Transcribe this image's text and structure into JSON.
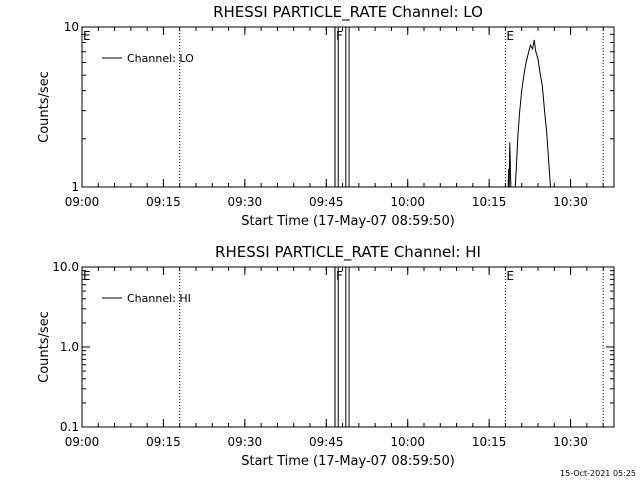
{
  "footer_timestamp": "15-Oct-2021 05:25",
  "chart_data": [
    {
      "type": "line",
      "title": "RHESSI PARTICLE_RATE Channel: LO",
      "xlabel": "Start Time (17-May-07 08:59:50)",
      "ylabel": "Counts/sec",
      "yscale": "log",
      "xlim": [
        "09:00",
        "10:38"
      ],
      "ylim": [
        1,
        10
      ],
      "x_ticks": [
        "09:00",
        "09:15",
        "09:30",
        "09:45",
        "10:00",
        "10:15",
        "10:30"
      ],
      "y_ticks": [
        "1",
        "10"
      ],
      "legend": "top-left",
      "series": [
        {
          "name": "Channel: LO",
          "points": [
            [
              "09:00",
              1
            ],
            [
              "09:46.6",
              1
            ],
            [
              "09:46.6",
              10
            ],
            [
              "09:47.2",
              10
            ],
            [
              "09:47.2",
              1
            ],
            [
              "09:48.6",
              1
            ],
            [
              "09:48.6",
              10
            ],
            [
              "09:49.2",
              10
            ],
            [
              "09:49.2",
              1
            ],
            [
              "10:18.5",
              1
            ],
            [
              "10:18.6",
              1.3
            ],
            [
              "10:18.7",
              1
            ],
            [
              "10:18.8",
              1.9
            ],
            [
              "10:19.0",
              1
            ],
            [
              "10:19.8",
              1
            ],
            [
              "10:20.0",
              1.3
            ],
            [
              "10:20.3",
              2.1
            ],
            [
              "10:20.6",
              2.9
            ],
            [
              "10:21.0",
              4.0
            ],
            [
              "10:21.4",
              5.0
            ],
            [
              "10:21.8",
              6.0
            ],
            [
              "10:22.2",
              6.8
            ],
            [
              "10:22.6",
              7.7
            ],
            [
              "10:23.0",
              7.3
            ],
            [
              "10:23.3",
              8.3
            ],
            [
              "10:23.6",
              7.0
            ],
            [
              "10:24.0",
              6.3
            ],
            [
              "10:24.4",
              5.1
            ],
            [
              "10:24.8",
              4.3
            ],
            [
              "10:25.2",
              3.0
            ],
            [
              "10:25.6",
              2.2
            ],
            [
              "10:26.0",
              1.4
            ],
            [
              "10:26.3",
              1
            ],
            [
              "10:38",
              1
            ]
          ]
        }
      ],
      "vertical_markers": [
        {
          "label": "E",
          "x": "09:00",
          "style": "dotted"
        },
        {
          "label": "",
          "x": "09:18",
          "style": "dotted"
        },
        {
          "label": "F",
          "x": "09:46.6",
          "style": "solid"
        },
        {
          "label": "E",
          "x": "10:18",
          "style": "dotted"
        },
        {
          "label": "",
          "x": "10:36",
          "style": "dotted"
        }
      ]
    },
    {
      "type": "line",
      "title": "RHESSI PARTICLE_RATE Channel: HI",
      "xlabel": "Start Time (17-May-07 08:59:50)",
      "ylabel": "Counts/sec",
      "yscale": "log",
      "xlim": [
        "09:00",
        "10:38"
      ],
      "ylim": [
        0.1,
        10
      ],
      "x_ticks": [
        "09:00",
        "09:15",
        "09:30",
        "09:45",
        "10:00",
        "10:15",
        "10:30"
      ],
      "y_ticks": [
        "0.1",
        "1.0",
        "10.0"
      ],
      "legend": "top-left",
      "series": [
        {
          "name": "Channel: HI",
          "points": [
            [
              "09:00",
              0.1
            ],
            [
              "09:46.6",
              0.1
            ],
            [
              "09:46.6",
              10
            ],
            [
              "09:47.2",
              10
            ],
            [
              "09:47.2",
              0.1
            ],
            [
              "09:48.6",
              0.1
            ],
            [
              "09:48.6",
              10
            ],
            [
              "09:49.2",
              10
            ],
            [
              "09:49.2",
              0.1
            ],
            [
              "10:38",
              0.1
            ]
          ]
        }
      ],
      "vertical_markers": [
        {
          "label": "E",
          "x": "09:00",
          "style": "dotted"
        },
        {
          "label": "",
          "x": "09:18",
          "style": "dotted"
        },
        {
          "label": "F",
          "x": "09:46.6",
          "style": "solid"
        },
        {
          "label": "E",
          "x": "10:18",
          "style": "dotted"
        },
        {
          "label": "",
          "x": "10:36",
          "style": "dotted"
        }
      ]
    }
  ]
}
